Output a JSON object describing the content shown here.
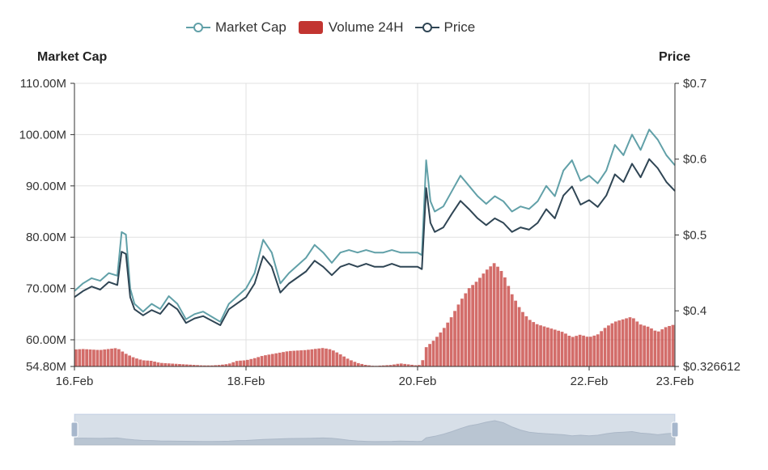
{
  "legend": {
    "items": [
      {
        "name": "Market Cap",
        "color": "#61a0a8",
        "marker": "line-circle"
      },
      {
        "name": "Volume 24H",
        "color": "#c23531",
        "marker": "rect"
      },
      {
        "name": "Price",
        "color": "#2f4554",
        "marker": "line-circle"
      }
    ]
  },
  "axes": {
    "left_name": "Market Cap",
    "right_name": "Price"
  },
  "chart_data": {
    "type": "line",
    "x_start": "16.Feb",
    "x_end": "23.Feb",
    "x_ticks": [
      "16.Feb",
      "18.Feb",
      "20.Feb",
      "22.Feb",
      "23.Feb"
    ],
    "x_tick_days": [
      16,
      18,
      20,
      22,
      23
    ],
    "y_left": {
      "min": 54.8,
      "max": 110,
      "ticks": [
        54.8,
        60,
        70,
        80,
        90,
        100,
        110
      ],
      "tick_labels": [
        "54.80M",
        "60.00M",
        "70.00M",
        "80.00M",
        "90.00M",
        "100.00M",
        "110.00M"
      ]
    },
    "y_right": {
      "min": 0.326612,
      "max": 0.7,
      "ticks": [
        0.326612,
        0.4,
        0.5,
        0.6,
        0.7
      ],
      "tick_labels": [
        "$0.326612",
        "$0.4",
        "$0.5",
        "$0.6",
        "$0.7"
      ]
    },
    "grid": true,
    "series": [
      {
        "name": "Market Cap",
        "axis": "left",
        "unit": "M",
        "x_day": [
          16.0,
          16.1,
          16.2,
          16.3,
          16.4,
          16.5,
          16.55,
          16.6,
          16.65,
          16.7,
          16.8,
          16.9,
          17.0,
          17.1,
          17.2,
          17.3,
          17.4,
          17.5,
          17.6,
          17.7,
          17.8,
          17.9,
          18.0,
          18.1,
          18.2,
          18.3,
          18.4,
          18.5,
          18.6,
          18.7,
          18.8,
          18.9,
          19.0,
          19.1,
          19.2,
          19.3,
          19.4,
          19.5,
          19.6,
          19.7,
          19.8,
          19.9,
          20.0,
          20.05,
          20.1,
          20.15,
          20.2,
          20.3,
          20.4,
          20.5,
          20.6,
          20.7,
          20.8,
          20.9,
          21.0,
          21.1,
          21.2,
          21.3,
          21.4,
          21.5,
          21.6,
          21.7,
          21.8,
          21.9,
          22.0,
          22.1,
          22.2,
          22.3,
          22.4,
          22.5,
          22.6,
          22.7,
          22.8,
          22.9,
          23.0
        ],
        "values": [
          69.5,
          71.0,
          72.0,
          71.5,
          73.0,
          72.5,
          81.0,
          80.5,
          70.0,
          67.0,
          65.5,
          67.0,
          66.0,
          68.5,
          67.0,
          64.0,
          65.0,
          65.5,
          64.5,
          63.5,
          67.0,
          68.5,
          70.0,
          73.0,
          79.5,
          77.0,
          71.0,
          73.0,
          74.5,
          76.0,
          78.5,
          77.0,
          75.0,
          77.0,
          77.5,
          77.0,
          77.5,
          77.0,
          77.0,
          77.5,
          77.0,
          77.0,
          77.0,
          76.5,
          95.0,
          87.0,
          85.0,
          86.0,
          89.0,
          92.0,
          90.0,
          88.0,
          86.5,
          88.0,
          87.0,
          85.0,
          86.0,
          85.5,
          87.0,
          90.0,
          88.0,
          93.0,
          95.0,
          91.0,
          92.0,
          90.5,
          93.0,
          98.0,
          96.0,
          100.0,
          97.0,
          101.0,
          99.0,
          96.0,
          94.0
        ]
      },
      {
        "name": "Price",
        "axis": "right",
        "unit": "$",
        "x_day": [
          16.0,
          16.1,
          16.2,
          16.3,
          16.4,
          16.5,
          16.55,
          16.6,
          16.65,
          16.7,
          16.8,
          16.9,
          17.0,
          17.1,
          17.2,
          17.3,
          17.4,
          17.5,
          17.6,
          17.7,
          17.8,
          17.9,
          18.0,
          18.1,
          18.2,
          18.3,
          18.4,
          18.5,
          18.6,
          18.7,
          18.8,
          18.9,
          19.0,
          19.1,
          19.2,
          19.3,
          19.4,
          19.5,
          19.6,
          19.7,
          19.8,
          19.9,
          20.0,
          20.05,
          20.1,
          20.15,
          20.2,
          20.3,
          20.4,
          20.5,
          20.6,
          20.7,
          20.8,
          20.9,
          21.0,
          21.1,
          21.2,
          21.3,
          21.4,
          21.5,
          21.6,
          21.7,
          21.8,
          21.9,
          22.0,
          22.1,
          22.2,
          22.3,
          22.4,
          22.5,
          22.6,
          22.7,
          22.8,
          22.9,
          23.0
        ],
        "values": [
          0.418,
          0.426,
          0.432,
          0.428,
          0.438,
          0.434,
          0.478,
          0.475,
          0.418,
          0.402,
          0.394,
          0.401,
          0.396,
          0.41,
          0.402,
          0.384,
          0.39,
          0.393,
          0.387,
          0.381,
          0.402,
          0.41,
          0.418,
          0.436,
          0.472,
          0.458,
          0.424,
          0.436,
          0.444,
          0.452,
          0.466,
          0.458,
          0.447,
          0.458,
          0.462,
          0.458,
          0.462,
          0.458,
          0.458,
          0.462,
          0.458,
          0.458,
          0.458,
          0.455,
          0.562,
          0.516,
          0.504,
          0.51,
          0.528,
          0.545,
          0.534,
          0.522,
          0.513,
          0.522,
          0.516,
          0.504,
          0.51,
          0.507,
          0.516,
          0.534,
          0.522,
          0.552,
          0.564,
          0.54,
          0.546,
          0.537,
          0.552,
          0.58,
          0.57,
          0.594,
          0.576,
          0.6,
          0.588,
          0.57,
          0.558
        ]
      },
      {
        "name": "Volume 24H",
        "type": "bar",
        "axis": "left",
        "unit": "M",
        "x_day": [
          16.0,
          16.1,
          16.2,
          16.3,
          16.4,
          16.5,
          16.6,
          16.7,
          16.8,
          16.9,
          17.0,
          17.1,
          17.2,
          17.3,
          17.4,
          17.5,
          17.6,
          17.7,
          17.8,
          17.9,
          18.0,
          18.1,
          18.2,
          18.3,
          18.4,
          18.5,
          18.6,
          18.7,
          18.8,
          18.9,
          19.0,
          19.1,
          19.2,
          19.3,
          19.4,
          19.5,
          19.6,
          19.7,
          19.8,
          19.9,
          20.0,
          20.05,
          20.1,
          20.2,
          20.3,
          20.4,
          20.5,
          20.6,
          20.7,
          20.8,
          20.9,
          21.0,
          21.1,
          21.2,
          21.3,
          21.4,
          21.5,
          21.6,
          21.7,
          21.8,
          21.9,
          22.0,
          22.1,
          22.2,
          22.3,
          22.4,
          22.5,
          22.6,
          22.7,
          22.8,
          22.9,
          23.0
        ],
        "values": [
          58.1,
          58.2,
          58.1,
          58.0,
          58.2,
          58.4,
          57.3,
          56.5,
          56.0,
          55.9,
          55.5,
          55.4,
          55.3,
          55.2,
          55.1,
          55.0,
          55.0,
          55.1,
          55.3,
          55.9,
          56.0,
          56.4,
          56.9,
          57.2,
          57.5,
          57.8,
          57.9,
          58.0,
          58.2,
          58.4,
          58.1,
          57.2,
          56.2,
          55.5,
          55.1,
          54.9,
          55.0,
          55.1,
          55.4,
          55.2,
          55.0,
          55.2,
          58.5,
          60.0,
          62.0,
          64.5,
          67.5,
          70.0,
          71.5,
          73.5,
          75.0,
          73.0,
          69.0,
          66.0,
          64.0,
          63.0,
          62.5,
          62.0,
          61.5,
          60.5,
          61.0,
          60.5,
          61.0,
          62.5,
          63.5,
          64.0,
          64.5,
          63.0,
          62.5,
          61.5,
          62.5,
          63.0
        ]
      }
    ]
  },
  "zoom": {
    "range_start": "16.Feb",
    "range_end": "23.Feb"
  }
}
